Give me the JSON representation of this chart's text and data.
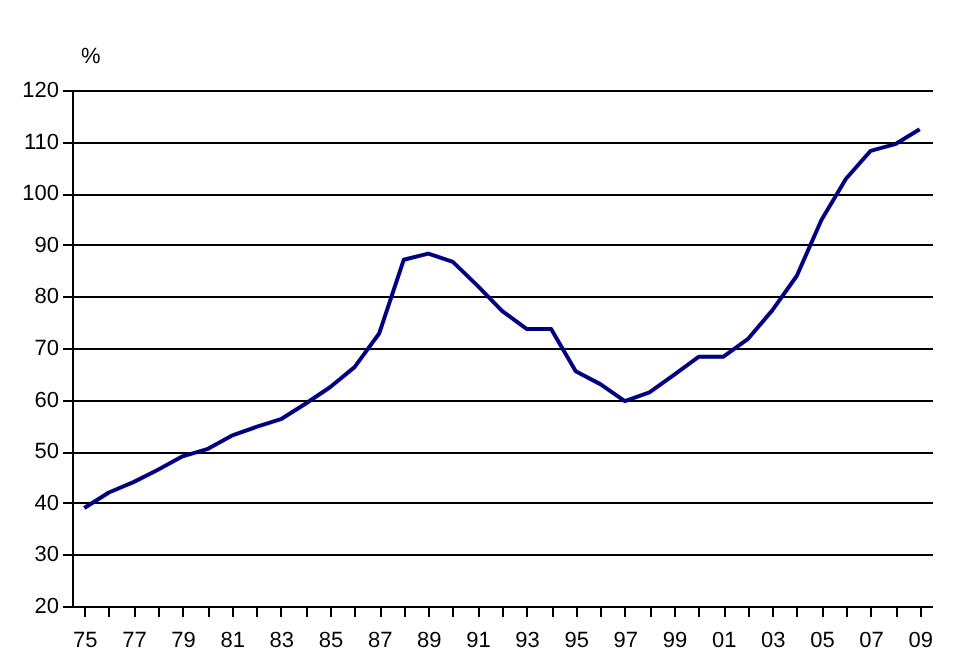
{
  "chart_data": {
    "type": "line",
    "ylabel": "%",
    "categories": [
      "75",
      null,
      "77",
      null,
      "79",
      null,
      "81",
      null,
      "83",
      null,
      "85",
      null,
      "87",
      null,
      "89",
      null,
      "91",
      null,
      "93",
      null,
      "95",
      null,
      "97",
      null,
      "99",
      null,
      "01",
      null,
      "03",
      null,
      "05",
      null,
      "07",
      null,
      "09"
    ],
    "series": [
      {
        "color": "#000080",
        "values": [
          39,
          42,
          44,
          46.4,
          49,
          50.4,
          53,
          54.7,
          56.2,
          59.2,
          62.4,
          66.3,
          72.8,
          87.1,
          88.3,
          86.7,
          82.1,
          77.2,
          73.7,
          73.7,
          65.5,
          63,
          59.7,
          61.4,
          64.8,
          68.3,
          68.3,
          71.7,
          77.3,
          84,
          94.8,
          102.8,
          108.2,
          109.5,
          112.4
        ]
      }
    ],
    "ylim": [
      20,
      120
    ],
    "yticks": [
      20,
      30,
      40,
      50,
      60,
      70,
      80,
      90,
      100,
      110,
      120
    ],
    "grid": "y",
    "marker": "none",
    "line_style": "solid"
  }
}
